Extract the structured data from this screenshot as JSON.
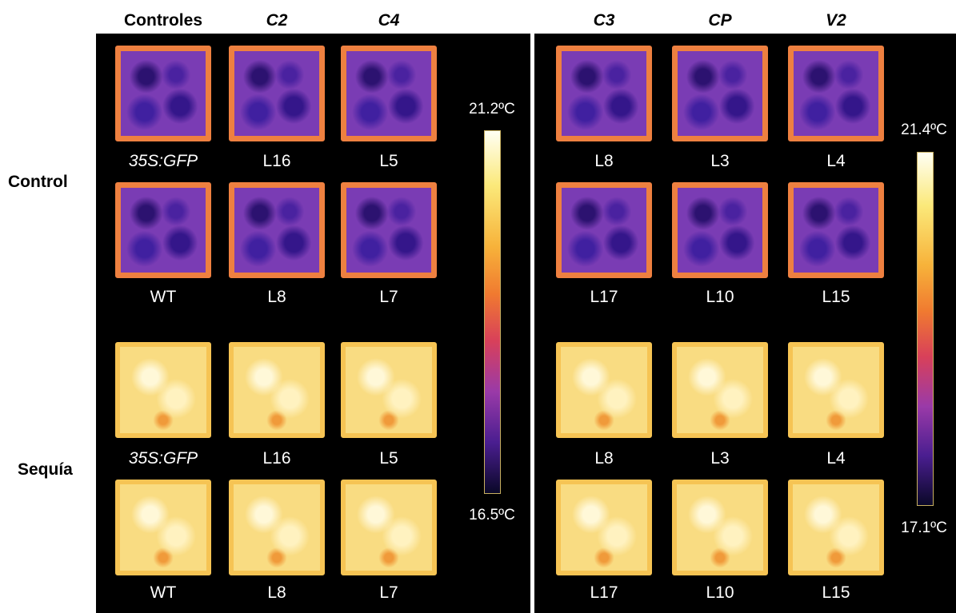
{
  "columns": {
    "left": [
      "Controles",
      "C2",
      "C4"
    ],
    "right": [
      "C3",
      "CP",
      "V2"
    ]
  },
  "rows": [
    "Control",
    "Sequía"
  ],
  "left_panel": {
    "labels": [
      [
        "35S:GFP",
        "L16",
        "L5"
      ],
      [
        "WT",
        "L8",
        "L7"
      ],
      [
        "35S:GFP",
        "L16",
        "L5"
      ],
      [
        "WT",
        "L8",
        "L7"
      ]
    ],
    "scale": {
      "max": "21.2ºC",
      "min": "16.5ºC"
    }
  },
  "right_panel": {
    "labels": [
      [
        "L8",
        "L3",
        "L4"
      ],
      [
        "L17",
        "L10",
        "L15"
      ],
      [
        "L8",
        "L3",
        "L4"
      ],
      [
        "L17",
        "L10",
        "L15"
      ]
    ],
    "scale": {
      "max": "21.4ºC",
      "min": "17.1ºC"
    }
  }
}
